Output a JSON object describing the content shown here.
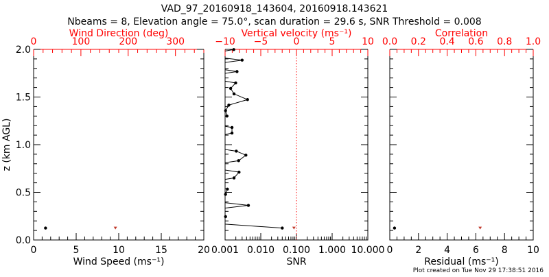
{
  "title": "VAD_97_20160918_143604, 20160918.143621",
  "subtitle": "Nbeams = 8, Elevation angle = 75.0°, scan duration = 29.6 s, SNR Threshold = 0.008",
  "footer": "Plot created on Tue Nov 29 17:38:51 2016",
  "colors": {
    "primary": "#000000",
    "secondary": "#ff0000",
    "secondary_marker": "#c0392b"
  },
  "ylabel": "z (km AGL)",
  "yticks": [
    "0.0",
    "0.5",
    "1.0",
    "1.5",
    "2.0"
  ],
  "ylim": [
    0,
    2.0
  ],
  "chart_data": [
    {
      "type": "scatter",
      "xlabel": "Wind Speed (ms⁻¹)",
      "xlim": [
        0,
        20
      ],
      "xticks": [
        "0",
        "5",
        "10",
        "15",
        "20"
      ],
      "top_label": "Wind Direction (deg)",
      "top_lim": [
        0,
        360
      ],
      "top_ticks": [
        "0",
        "100",
        "200",
        "300"
      ],
      "series": [
        {
          "name": "Wind Speed",
          "axis": "bottom",
          "x": [
            1.4
          ],
          "z": [
            0.125
          ]
        },
        {
          "name": "Wind Direction",
          "axis": "top",
          "x": [
            173
          ],
          "z": [
            0.125
          ]
        }
      ]
    },
    {
      "type": "line",
      "xlabel": "SNR",
      "xscale": "log",
      "xlim": [
        0.001,
        10
      ],
      "xticks": [
        "0.001",
        "0.010",
        "0.100",
        "1.000",
        "10.000"
      ],
      "top_label": "Vertical velocity (ms⁻¹)",
      "top_lim": [
        -10,
        10
      ],
      "top_ticks": [
        "−10",
        "−5",
        "0",
        "5",
        "10"
      ],
      "reference_line_top": 0,
      "series": [
        {
          "name": "SNR",
          "axis": "bottom",
          "z": [
            0.125,
            0.185,
            0.245,
            0.304,
            0.363,
            0.421,
            0.479,
            0.534,
            0.593,
            0.651,
            0.712,
            0.772,
            0.832,
            0.89,
            0.932,
            0.99,
            1.05,
            1.122,
            1.18,
            1.24,
            1.3,
            1.357,
            1.415,
            1.473,
            1.533,
            1.59,
            1.648,
            1.708,
            1.767,
            1.827,
            1.887,
            1.94,
            1.998
          ],
          "x": [
            0.04,
            0.0002,
            0.00103,
            0.0002,
            0.0045,
            0.0002,
            0.00103,
            0.00116,
            0.0002,
            0.00178,
            0.00246,
            0.0002,
            0.00239,
            0.00383,
            0.00206,
            0.0002,
            0.0002,
            0.00156,
            0.00156,
            0.0002,
            0.00113,
            0.00103,
            0.00127,
            0.00425,
            0.00178,
            0.00143,
            0.00198,
            0.0002,
            0.00216,
            0.0002,
            0.003,
            0.0002,
            0.00175
          ]
        },
        {
          "name": "Vertical velocity",
          "axis": "top",
          "x": [
            -0.35
          ],
          "z": [
            0.125
          ]
        }
      ]
    },
    {
      "type": "scatter",
      "xlabel": "Residual (ms⁻¹)",
      "xlim": [
        0,
        10
      ],
      "xticks": [
        "0",
        "2",
        "4",
        "6",
        "8",
        "10"
      ],
      "top_label": "Correlation",
      "top_lim": [
        0,
        1
      ],
      "top_ticks": [
        "0.0",
        "0.2",
        "0.4",
        "0.6",
        "0.8",
        "1.0"
      ],
      "series": [
        {
          "name": "Residual",
          "axis": "bottom",
          "x": [
            0.33
          ],
          "z": [
            0.125
          ]
        },
        {
          "name": "Correlation",
          "axis": "top",
          "x": [
            0.63
          ],
          "z": [
            0.125
          ]
        }
      ]
    }
  ]
}
